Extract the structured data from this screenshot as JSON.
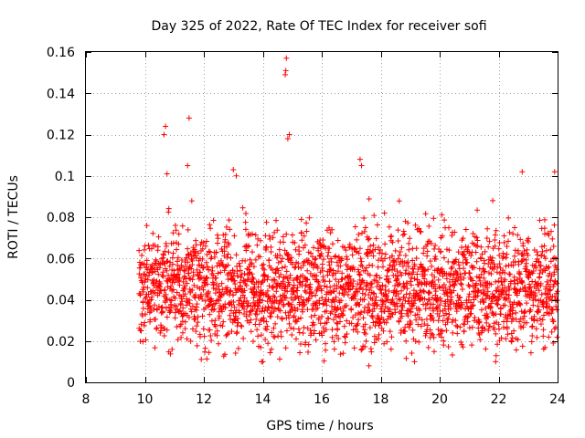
{
  "chart_data": {
    "type": "scatter",
    "title": "Day 325 of 2022, Rate Of TEC Index for receiver sofi",
    "xlabel": "GPS time / hours",
    "ylabel": "ROTI / TECUs",
    "xlim": [
      8,
      24
    ],
    "ylim": [
      0,
      0.16
    ],
    "x_ticks": [
      8,
      10,
      12,
      14,
      16,
      18,
      20,
      22,
      24
    ],
    "x_tick_labels": [
      "8",
      "10",
      "12",
      "14",
      "16",
      "18",
      "20",
      "22",
      "24"
    ],
    "y_ticks": [
      0,
      0.02,
      0.04,
      0.06,
      0.08,
      0.1,
      0.12,
      0.14,
      0.16
    ],
    "y_tick_labels": [
      "0",
      "0.02",
      "0.04",
      "0.06",
      "0.08",
      "0.1",
      "0.12",
      "0.14",
      "0.16"
    ],
    "grid": true,
    "marker": "plus",
    "series": [
      {
        "name": "ROTI",
        "color": "#ff0000",
        "x_range": [
          9.8,
          24
        ],
        "typical_range": [
          0.02,
          0.07
        ],
        "peaks": [
          {
            "x": 10.7,
            "y": 0.124
          },
          {
            "x": 10.65,
            "y": 0.12
          },
          {
            "x": 10.75,
            "y": 0.101
          },
          {
            "x": 11.5,
            "y": 0.128
          },
          {
            "x": 11.45,
            "y": 0.105
          },
          {
            "x": 13.0,
            "y": 0.103
          },
          {
            "x": 13.1,
            "y": 0.1
          },
          {
            "x": 14.8,
            "y": 0.157
          },
          {
            "x": 14.78,
            "y": 0.151
          },
          {
            "x": 14.76,
            "y": 0.149
          },
          {
            "x": 14.9,
            "y": 0.12
          },
          {
            "x": 14.85,
            "y": 0.118
          },
          {
            "x": 17.3,
            "y": 0.108
          },
          {
            "x": 17.35,
            "y": 0.105
          },
          {
            "x": 21.8,
            "y": 0.088
          },
          {
            "x": 22.8,
            "y": 0.102
          },
          {
            "x": 23.9,
            "y": 0.102
          },
          {
            "x": 17.6,
            "y": 0.008
          },
          {
            "x": 14.0,
            "y": 0.01
          },
          {
            "x": 21.9,
            "y": 0.01
          }
        ]
      }
    ]
  }
}
